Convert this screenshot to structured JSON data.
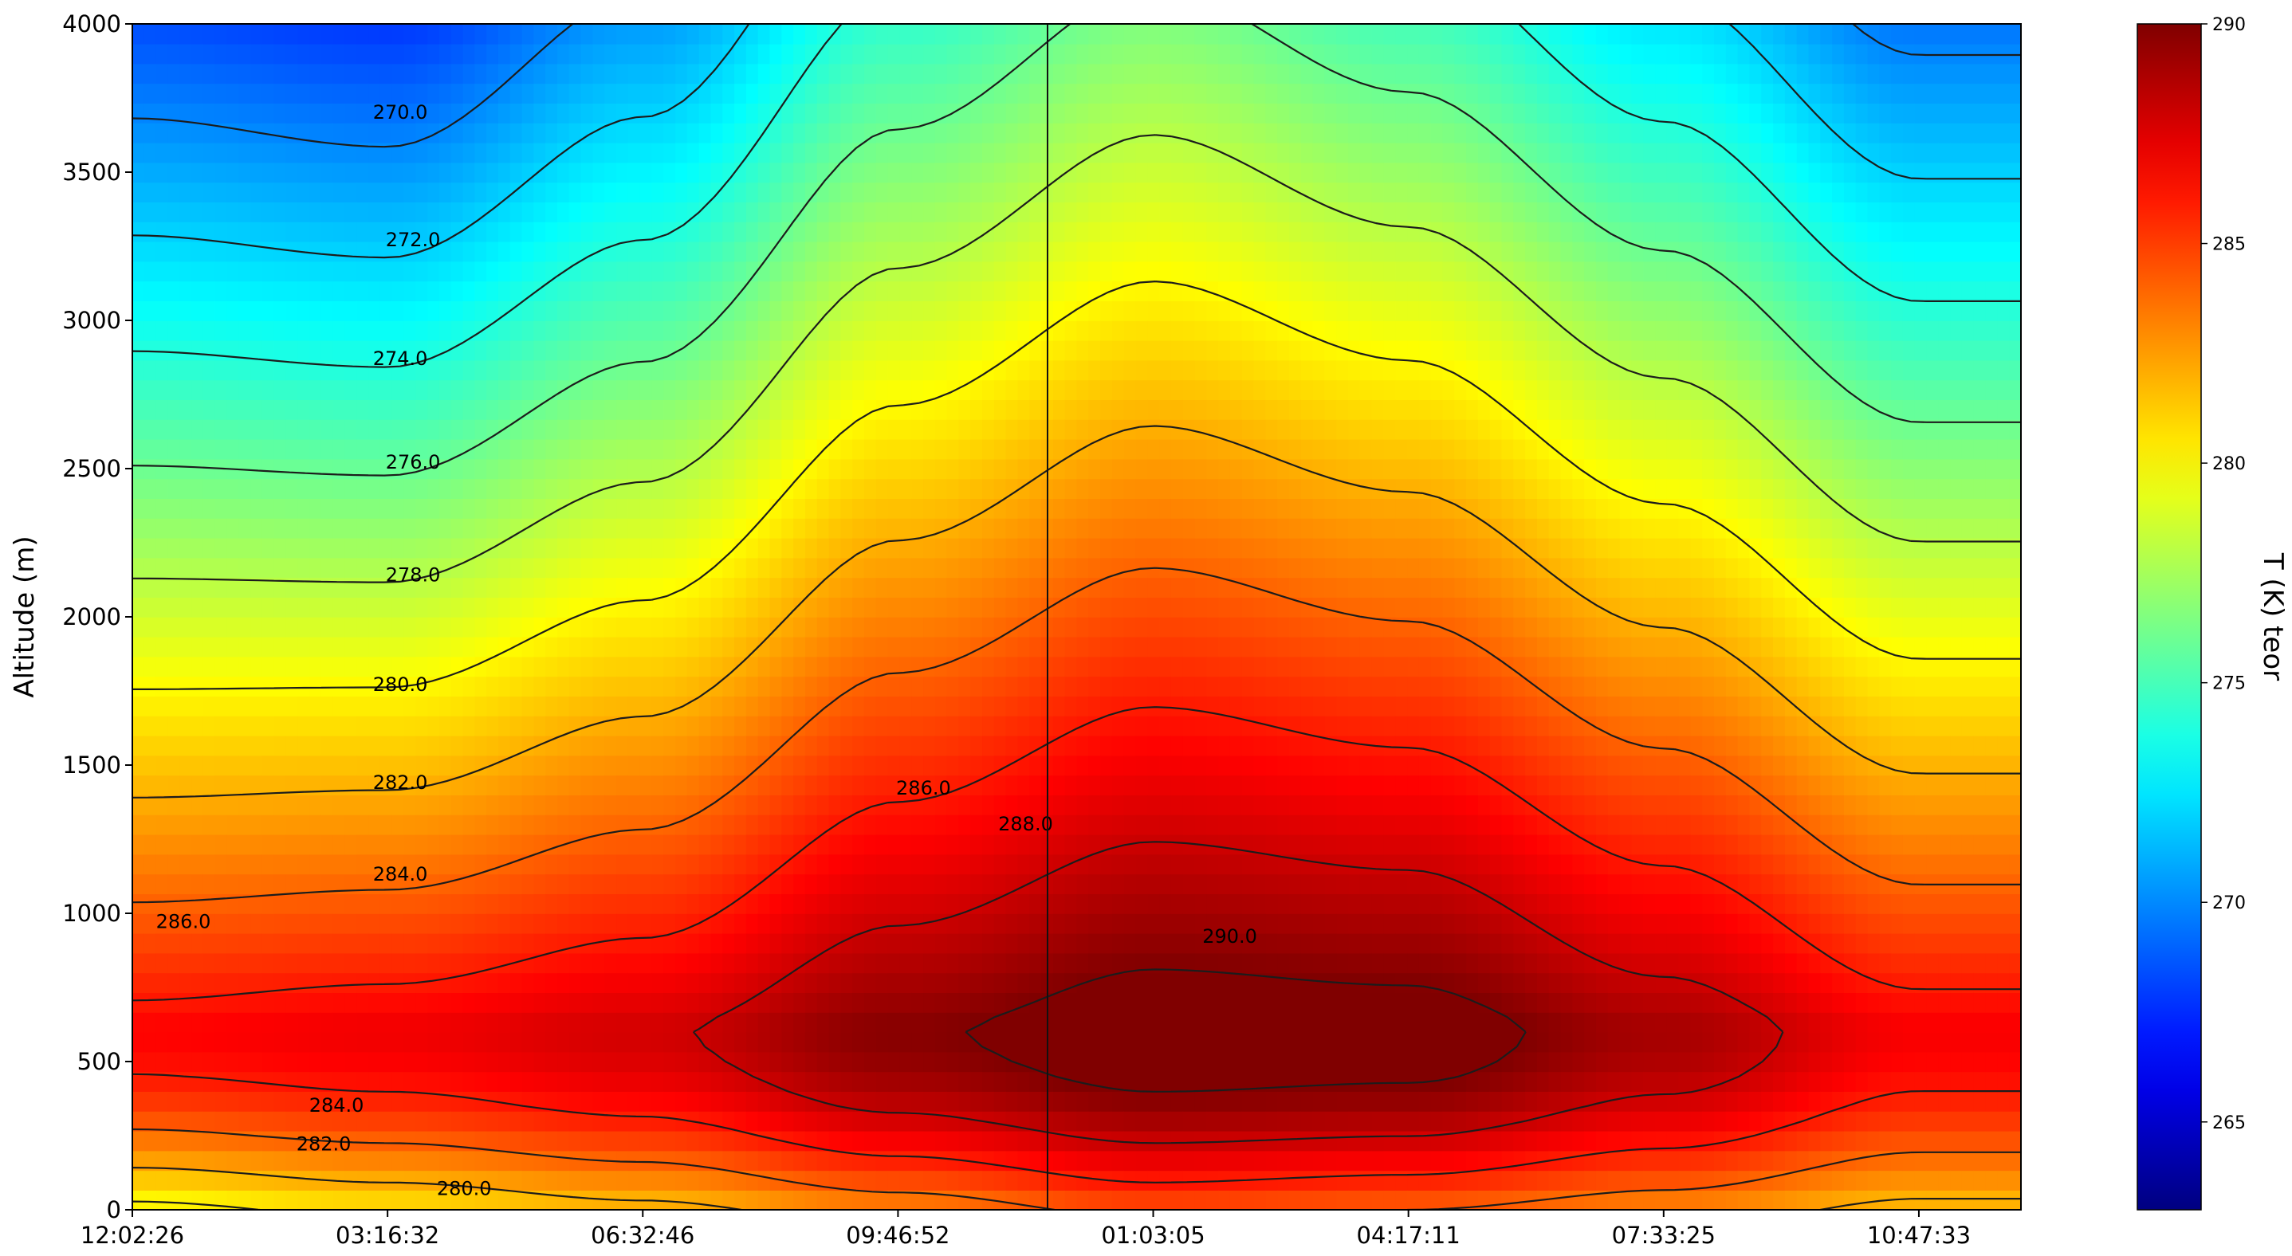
{
  "chart_data": {
    "type": "heatmap",
    "title": "",
    "xlabel": "",
    "ylabel": "Altitude (m)",
    "colorbar_label": "T (K) teor",
    "colormap": "jet",
    "grid": false,
    "x_tick_labels": [
      "12:02:26",
      "03:16:32",
      "06:32:46",
      "09:46:52",
      "01:03:05",
      "04:17:11",
      "07:33:25",
      "10:47:33"
    ],
    "y_ticks": [
      0,
      500,
      1000,
      1500,
      2000,
      2500,
      3000,
      3500,
      4000
    ],
    "ylim": [
      0,
      4000
    ],
    "color_range": [
      263,
      290
    ],
    "colorbar_ticks": [
      265,
      270,
      275,
      280,
      285,
      290
    ],
    "contour_levels": [
      270,
      272,
      274,
      276,
      278,
      280,
      282,
      284,
      286,
      288,
      290
    ],
    "contour_labels": [
      {
        "text": "270.0",
        "value": 270,
        "time_index": 1.05,
        "altitude": 3680
      },
      {
        "text": "272.0",
        "value": 272,
        "time_index": 1.1,
        "altitude": 3250
      },
      {
        "text": "274.0",
        "value": 274,
        "time_index": 1.05,
        "altitude": 2850
      },
      {
        "text": "276.0",
        "value": 276,
        "time_index": 1.1,
        "altitude": 2500
      },
      {
        "text": "278.0",
        "value": 278,
        "time_index": 1.1,
        "altitude": 2120
      },
      {
        "text": "280.0",
        "value": 280,
        "time_index": 1.05,
        "altitude": 1750
      },
      {
        "text": "282.0",
        "value": 282,
        "time_index": 1.05,
        "altitude": 1420
      },
      {
        "text": "284.0",
        "value": 284,
        "time_index": 1.05,
        "altitude": 1110
      },
      {
        "text": "286.0",
        "value": 286,
        "time_index": 0.2,
        "altitude": 950
      },
      {
        "text": "286.0",
        "value": 286,
        "time_index": 3.1,
        "altitude": 1400
      },
      {
        "text": "288.0",
        "value": 288,
        "time_index": 3.5,
        "altitude": 1280
      },
      {
        "text": "290.0",
        "value": 290,
        "time_index": 4.3,
        "altitude": 900
      },
      {
        "text": "284.0",
        "value": 284,
        "time_index": 0.8,
        "altitude": 330
      },
      {
        "text": "282.0",
        "value": 282,
        "time_index": 0.75,
        "altitude": 200
      },
      {
        "text": "280.0",
        "value": 280,
        "time_index": 1.3,
        "altitude": 50
      }
    ],
    "temperature_profile_parameters": {
      "peak_altitude_m": 620,
      "surface_temperature_K": [
        279.5,
        280.5,
        281.5,
        283.0,
        284.5,
        284.0,
        283.0,
        281.5
      ],
      "peak_temperature_K": [
        286.6,
        287.0,
        287.8,
        289.8,
        291.0,
        290.8,
        289.0,
        286.8
      ],
      "top_temperature_K": [
        268.4,
        267.8,
        270.5,
        274.5,
        276.5,
        275.0,
        272.5,
        269.5
      ]
    }
  }
}
